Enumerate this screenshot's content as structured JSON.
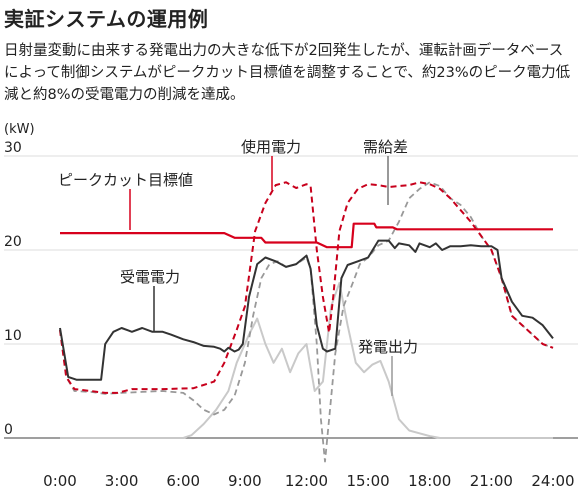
{
  "title": "実証システムの運用例",
  "description": "日射量変動に由来する発電出力の大きな低下が2回発生したが、運転計画データベースによって制御システムがピークカット目標値を調整することで、約23%のピーク電力低減と約8%の受電電力の削減を達成。",
  "chart_data": {
    "type": "line",
    "unit_label": "(kW)",
    "ylim": [
      0,
      30
    ],
    "y_ticks": [
      "0",
      "10",
      "20",
      "30"
    ],
    "xlim": [
      0,
      24
    ],
    "x_ticks": [
      "0:00",
      "3:00",
      "6:00",
      "9:00",
      "12:00",
      "15:00",
      "18:00",
      "21:00",
      "24:00"
    ],
    "grid": true,
    "colors": {
      "peak_target": "#d7001c",
      "usage": "#c8001c",
      "received": "#333333",
      "generation": "#c9c9c9",
      "demand_supply": "#999999"
    },
    "series": [
      {
        "key": "peak_target",
        "name": "ピークカット目標値",
        "style": "solid",
        "points": [
          [
            0,
            21.8
          ],
          [
            8,
            21.8
          ],
          [
            8.5,
            21.3
          ],
          [
            9.8,
            21.3
          ],
          [
            10,
            20.8
          ],
          [
            12.5,
            20.8
          ],
          [
            13,
            20.3
          ],
          [
            14.2,
            20.3
          ],
          [
            14.3,
            22.8
          ],
          [
            15.3,
            22.8
          ],
          [
            15.4,
            22.4
          ],
          [
            16.2,
            22.4
          ],
          [
            16.4,
            22.2
          ],
          [
            24,
            22.2
          ]
        ]
      },
      {
        "key": "usage",
        "name": "使用電力",
        "style": "dashed",
        "points": [
          [
            0,
            11.5
          ],
          [
            0.3,
            6.5
          ],
          [
            0.7,
            5.2
          ],
          [
            1.5,
            5
          ],
          [
            2.2,
            4.8
          ],
          [
            2.8,
            4.8
          ],
          [
            3.5,
            5.2
          ],
          [
            5,
            5.2
          ],
          [
            6.5,
            5.3
          ],
          [
            7.5,
            6
          ],
          [
            8,
            8
          ],
          [
            8.6,
            11.5
          ],
          [
            9,
            14
          ],
          [
            9.5,
            22
          ],
          [
            10,
            25
          ],
          [
            10.5,
            26.9
          ],
          [
            11,
            27.2
          ],
          [
            11.5,
            26.6
          ],
          [
            12,
            27
          ],
          [
            12.2,
            26.8
          ],
          [
            12.5,
            20
          ],
          [
            12.8,
            15
          ],
          [
            13.1,
            11.2
          ],
          [
            13.3,
            15
          ],
          [
            13.6,
            22
          ],
          [
            14,
            25
          ],
          [
            14.5,
            26.5
          ],
          [
            15,
            27
          ],
          [
            15.5,
            26.9
          ],
          [
            16,
            26.7
          ],
          [
            17,
            26.9
          ],
          [
            17.5,
            27.2
          ],
          [
            18,
            27
          ],
          [
            18.5,
            26.5
          ],
          [
            19,
            25.5
          ],
          [
            20,
            23
          ],
          [
            20.5,
            21.5
          ],
          [
            21,
            20
          ],
          [
            21.5,
            17
          ],
          [
            22,
            13
          ],
          [
            22.5,
            12
          ],
          [
            23,
            11
          ],
          [
            23.5,
            10
          ],
          [
            24,
            9.6
          ]
        ]
      },
      {
        "key": "received",
        "name": "受電電力",
        "style": "solid",
        "points": [
          [
            0,
            11.7
          ],
          [
            0.4,
            6.5
          ],
          [
            0.8,
            6.2
          ],
          [
            1.5,
            6.2
          ],
          [
            2,
            6.2
          ],
          [
            2.2,
            10
          ],
          [
            2.6,
            11.3
          ],
          [
            3,
            11.7
          ],
          [
            3.5,
            11.3
          ],
          [
            4,
            11.7
          ],
          [
            4.5,
            11.3
          ],
          [
            5,
            11.3
          ],
          [
            5.4,
            11
          ],
          [
            6,
            10.5
          ],
          [
            6.5,
            10.2
          ],
          [
            7,
            9.8
          ],
          [
            7.5,
            9.7
          ],
          [
            7.8,
            9.5
          ],
          [
            8,
            9.2
          ],
          [
            8.2,
            9.6
          ],
          [
            8.5,
            9.2
          ],
          [
            8.7,
            9.4
          ],
          [
            8.9,
            10
          ],
          [
            9.2,
            15
          ],
          [
            9.6,
            18.5
          ],
          [
            10,
            19.2
          ],
          [
            10.5,
            18.8
          ],
          [
            11,
            18.2
          ],
          [
            11.5,
            18.5
          ],
          [
            12,
            19.4
          ],
          [
            12.2,
            18
          ],
          [
            12.5,
            12
          ],
          [
            12.8,
            9.5
          ],
          [
            13,
            9.2
          ],
          [
            13.4,
            9.5
          ],
          [
            13.7,
            17
          ],
          [
            14,
            18.4
          ],
          [
            14.5,
            18.8
          ],
          [
            15,
            19.2
          ],
          [
            15.5,
            21
          ],
          [
            16,
            21
          ],
          [
            16.3,
            20.2
          ],
          [
            16.5,
            20.7
          ],
          [
            17,
            20.5
          ],
          [
            17.3,
            19.8
          ],
          [
            17.5,
            20.7
          ],
          [
            18,
            20.3
          ],
          [
            18.3,
            20.7
          ],
          [
            18.6,
            20
          ],
          [
            19,
            20.4
          ],
          [
            19.5,
            20.4
          ],
          [
            20,
            20.5
          ],
          [
            20.5,
            20.4
          ],
          [
            21,
            20.4
          ],
          [
            21.3,
            20
          ],
          [
            21.5,
            17
          ],
          [
            22,
            14.5
          ],
          [
            22.5,
            13
          ],
          [
            23,
            12.8
          ],
          [
            23.5,
            12
          ],
          [
            24,
            10.6
          ]
        ]
      },
      {
        "key": "generation",
        "name": "発電出力",
        "style": "solid",
        "points": [
          [
            0,
            0
          ],
          [
            6,
            0
          ],
          [
            6.4,
            0.3
          ],
          [
            7,
            1.5
          ],
          [
            7.6,
            3
          ],
          [
            8.2,
            5
          ],
          [
            8.6,
            8
          ],
          [
            9.2,
            11
          ],
          [
            9.6,
            12.7
          ],
          [
            10,
            10
          ],
          [
            10.4,
            8
          ],
          [
            10.8,
            9.5
          ],
          [
            11.2,
            7
          ],
          [
            11.6,
            9
          ],
          [
            12,
            10
          ],
          [
            12.4,
            5
          ],
          [
            12.8,
            6
          ],
          [
            13.2,
            14
          ],
          [
            13.6,
            16.5
          ],
          [
            14,
            12
          ],
          [
            14.4,
            8
          ],
          [
            14.8,
            7
          ],
          [
            15.2,
            7.8
          ],
          [
            15.6,
            8.2
          ],
          [
            16,
            6
          ],
          [
            16.5,
            2
          ],
          [
            17,
            0.8
          ],
          [
            17.5,
            0.5
          ],
          [
            18,
            0.2
          ],
          [
            18.5,
            0
          ],
          [
            24,
            0
          ]
        ]
      },
      {
        "key": "demand_supply",
        "name": "需給差",
        "style": "dashed",
        "points": [
          [
            0,
            11.5
          ],
          [
            0.3,
            6.5
          ],
          [
            0.7,
            5
          ],
          [
            1.5,
            4.9
          ],
          [
            2.2,
            4.7
          ],
          [
            3,
            4.8
          ],
          [
            4,
            4.9
          ],
          [
            5,
            5
          ],
          [
            6,
            4.8
          ],
          [
            6.5,
            4
          ],
          [
            7,
            3
          ],
          [
            7.5,
            2.5
          ],
          [
            8,
            3
          ],
          [
            8.5,
            4.5
          ],
          [
            9,
            8
          ],
          [
            9.4,
            13
          ],
          [
            9.8,
            17
          ],
          [
            10.2,
            18.5
          ],
          [
            10.6,
            18.8
          ],
          [
            11,
            18.2
          ],
          [
            11.5,
            18.5
          ],
          [
            12,
            19.2
          ],
          [
            12.2,
            18
          ],
          [
            12.5,
            10
          ],
          [
            12.7,
            2
          ],
          [
            12.9,
            -2.5
          ],
          [
            13.1,
            2
          ],
          [
            13.4,
            9
          ],
          [
            13.8,
            14
          ],
          [
            14.2,
            16.2
          ],
          [
            14.6,
            18.5
          ],
          [
            15,
            19.2
          ],
          [
            15.5,
            20.5
          ],
          [
            16,
            21
          ],
          [
            16.5,
            23
          ],
          [
            17,
            25.5
          ],
          [
            17.5,
            26.5
          ],
          [
            18,
            27.2
          ],
          [
            18.5,
            26.8
          ],
          [
            19,
            25.5
          ],
          [
            19.5,
            24.8
          ],
          [
            20,
            23.5
          ],
          [
            20.5,
            21.5
          ],
          [
            21,
            20
          ],
          [
            21.5,
            17
          ],
          [
            22,
            13
          ],
          [
            22.5,
            12
          ],
          [
            23,
            11
          ],
          [
            23.5,
            10
          ],
          [
            24,
            9.6
          ]
        ]
      }
    ],
    "labels": [
      {
        "key": "peak_target",
        "text": "ピークカット目標値"
      },
      {
        "key": "usage",
        "text": "使用電力"
      },
      {
        "key": "demand_supply",
        "text": "需給差"
      },
      {
        "key": "received",
        "text": "受電電力"
      },
      {
        "key": "generation",
        "text": "発電出力"
      }
    ]
  }
}
